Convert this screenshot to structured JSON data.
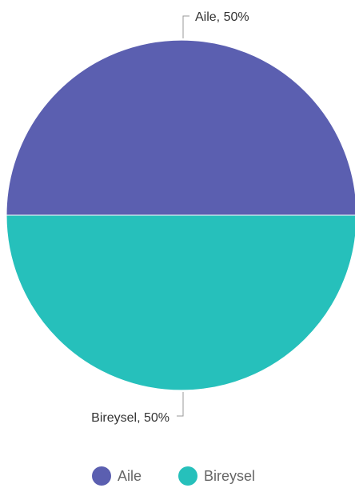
{
  "chart_data": {
    "type": "pie",
    "title": "",
    "slices": [
      {
        "label": "Aile",
        "value": 50,
        "data_label": "Aile, 50%",
        "color": "#5b5fb0"
      },
      {
        "label": "Bireysel",
        "value": 50,
        "data_label": "Bireysel, 50%",
        "color": "#26c0bb"
      }
    ],
    "legend": {
      "placement": "bottom-center",
      "items": [
        "Aile",
        "Bireysel"
      ]
    }
  }
}
